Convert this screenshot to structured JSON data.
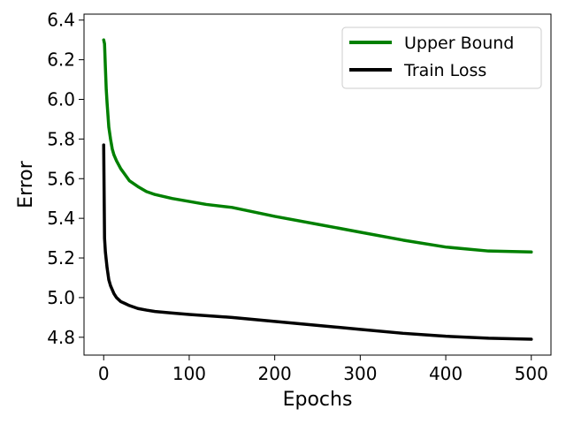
{
  "chart_data": {
    "type": "line",
    "title": "",
    "xlabel": "Epochs",
    "ylabel": "Error",
    "xlim": [
      -23,
      523
    ],
    "ylim": [
      4.71,
      6.43
    ],
    "xticks": [
      0,
      100,
      200,
      300,
      400,
      500
    ],
    "yticks": [
      4.8,
      5.0,
      5.2,
      5.4,
      5.6,
      5.8,
      6.0,
      6.2,
      6.4
    ],
    "xtick_labels": [
      "0",
      "100",
      "200",
      "300",
      "400",
      "500"
    ],
    "ytick_labels": [
      "4.8",
      "5.0",
      "5.2",
      "5.4",
      "5.6",
      "5.8",
      "6.0",
      "6.2",
      "6.4"
    ],
    "grid": false,
    "legend_position": "top-right",
    "series": [
      {
        "name": "Upper Bound",
        "color": "#008000",
        "x": [
          0,
          1,
          2,
          3,
          4,
          5,
          6,
          8,
          10,
          12,
          15,
          20,
          25,
          30,
          40,
          50,
          60,
          80,
          100,
          120,
          150,
          200,
          250,
          300,
          350,
          400,
          450,
          500
        ],
        "y": [
          6.3,
          6.28,
          6.16,
          6.05,
          5.98,
          5.92,
          5.86,
          5.8,
          5.75,
          5.72,
          5.69,
          5.65,
          5.62,
          5.59,
          5.56,
          5.535,
          5.52,
          5.5,
          5.485,
          5.47,
          5.455,
          5.41,
          5.37,
          5.33,
          5.29,
          5.255,
          5.235,
          5.23
        ]
      },
      {
        "name": "Train Loss",
        "color": "#000000",
        "x": [
          0,
          1,
          2,
          3,
          4,
          5,
          6,
          8,
          10,
          12,
          15,
          20,
          25,
          30,
          40,
          50,
          60,
          80,
          100,
          150,
          200,
          250,
          300,
          350,
          400,
          450,
          500
        ],
        "y": [
          5.77,
          5.3,
          5.23,
          5.19,
          5.15,
          5.12,
          5.09,
          5.06,
          5.04,
          5.02,
          5.0,
          4.98,
          4.97,
          4.96,
          4.945,
          4.937,
          4.93,
          4.922,
          4.915,
          4.9,
          4.88,
          4.86,
          4.84,
          4.82,
          4.805,
          4.795,
          4.79
        ]
      }
    ]
  }
}
